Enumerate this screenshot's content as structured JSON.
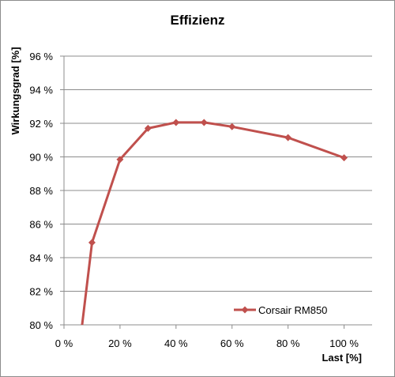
{
  "chart_data": {
    "type": "line",
    "title": "Effizienz",
    "xlabel": "Last [%]",
    "ylabel": "Wirkungsgrad [%]",
    "xlim": [
      0,
      110
    ],
    "ylim": [
      80,
      96
    ],
    "x_ticks": [
      0,
      20,
      40,
      60,
      80,
      100
    ],
    "x_tick_labels": [
      "0 %",
      "20 %",
      "40 %",
      "60 %",
      "80 %",
      "100 %"
    ],
    "y_ticks": [
      80,
      82,
      84,
      86,
      88,
      90,
      92,
      94,
      96
    ],
    "y_tick_labels": [
      "80 %",
      "82 %",
      "84 %",
      "86 %",
      "88 %",
      "90 %",
      "92 %",
      "94 %",
      "96 %"
    ],
    "grid": "horizontal",
    "legend_position": "bottom-right",
    "series": [
      {
        "name": "Corsair RM850",
        "color": "#c0504d",
        "marker": "diamond",
        "x": [
          6.4,
          10,
          20,
          30,
          40,
          50,
          60,
          80,
          100
        ],
        "y": [
          79.9,
          84.9,
          89.85,
          91.7,
          92.05,
          92.05,
          91.8,
          91.15,
          89.95
        ]
      }
    ]
  }
}
